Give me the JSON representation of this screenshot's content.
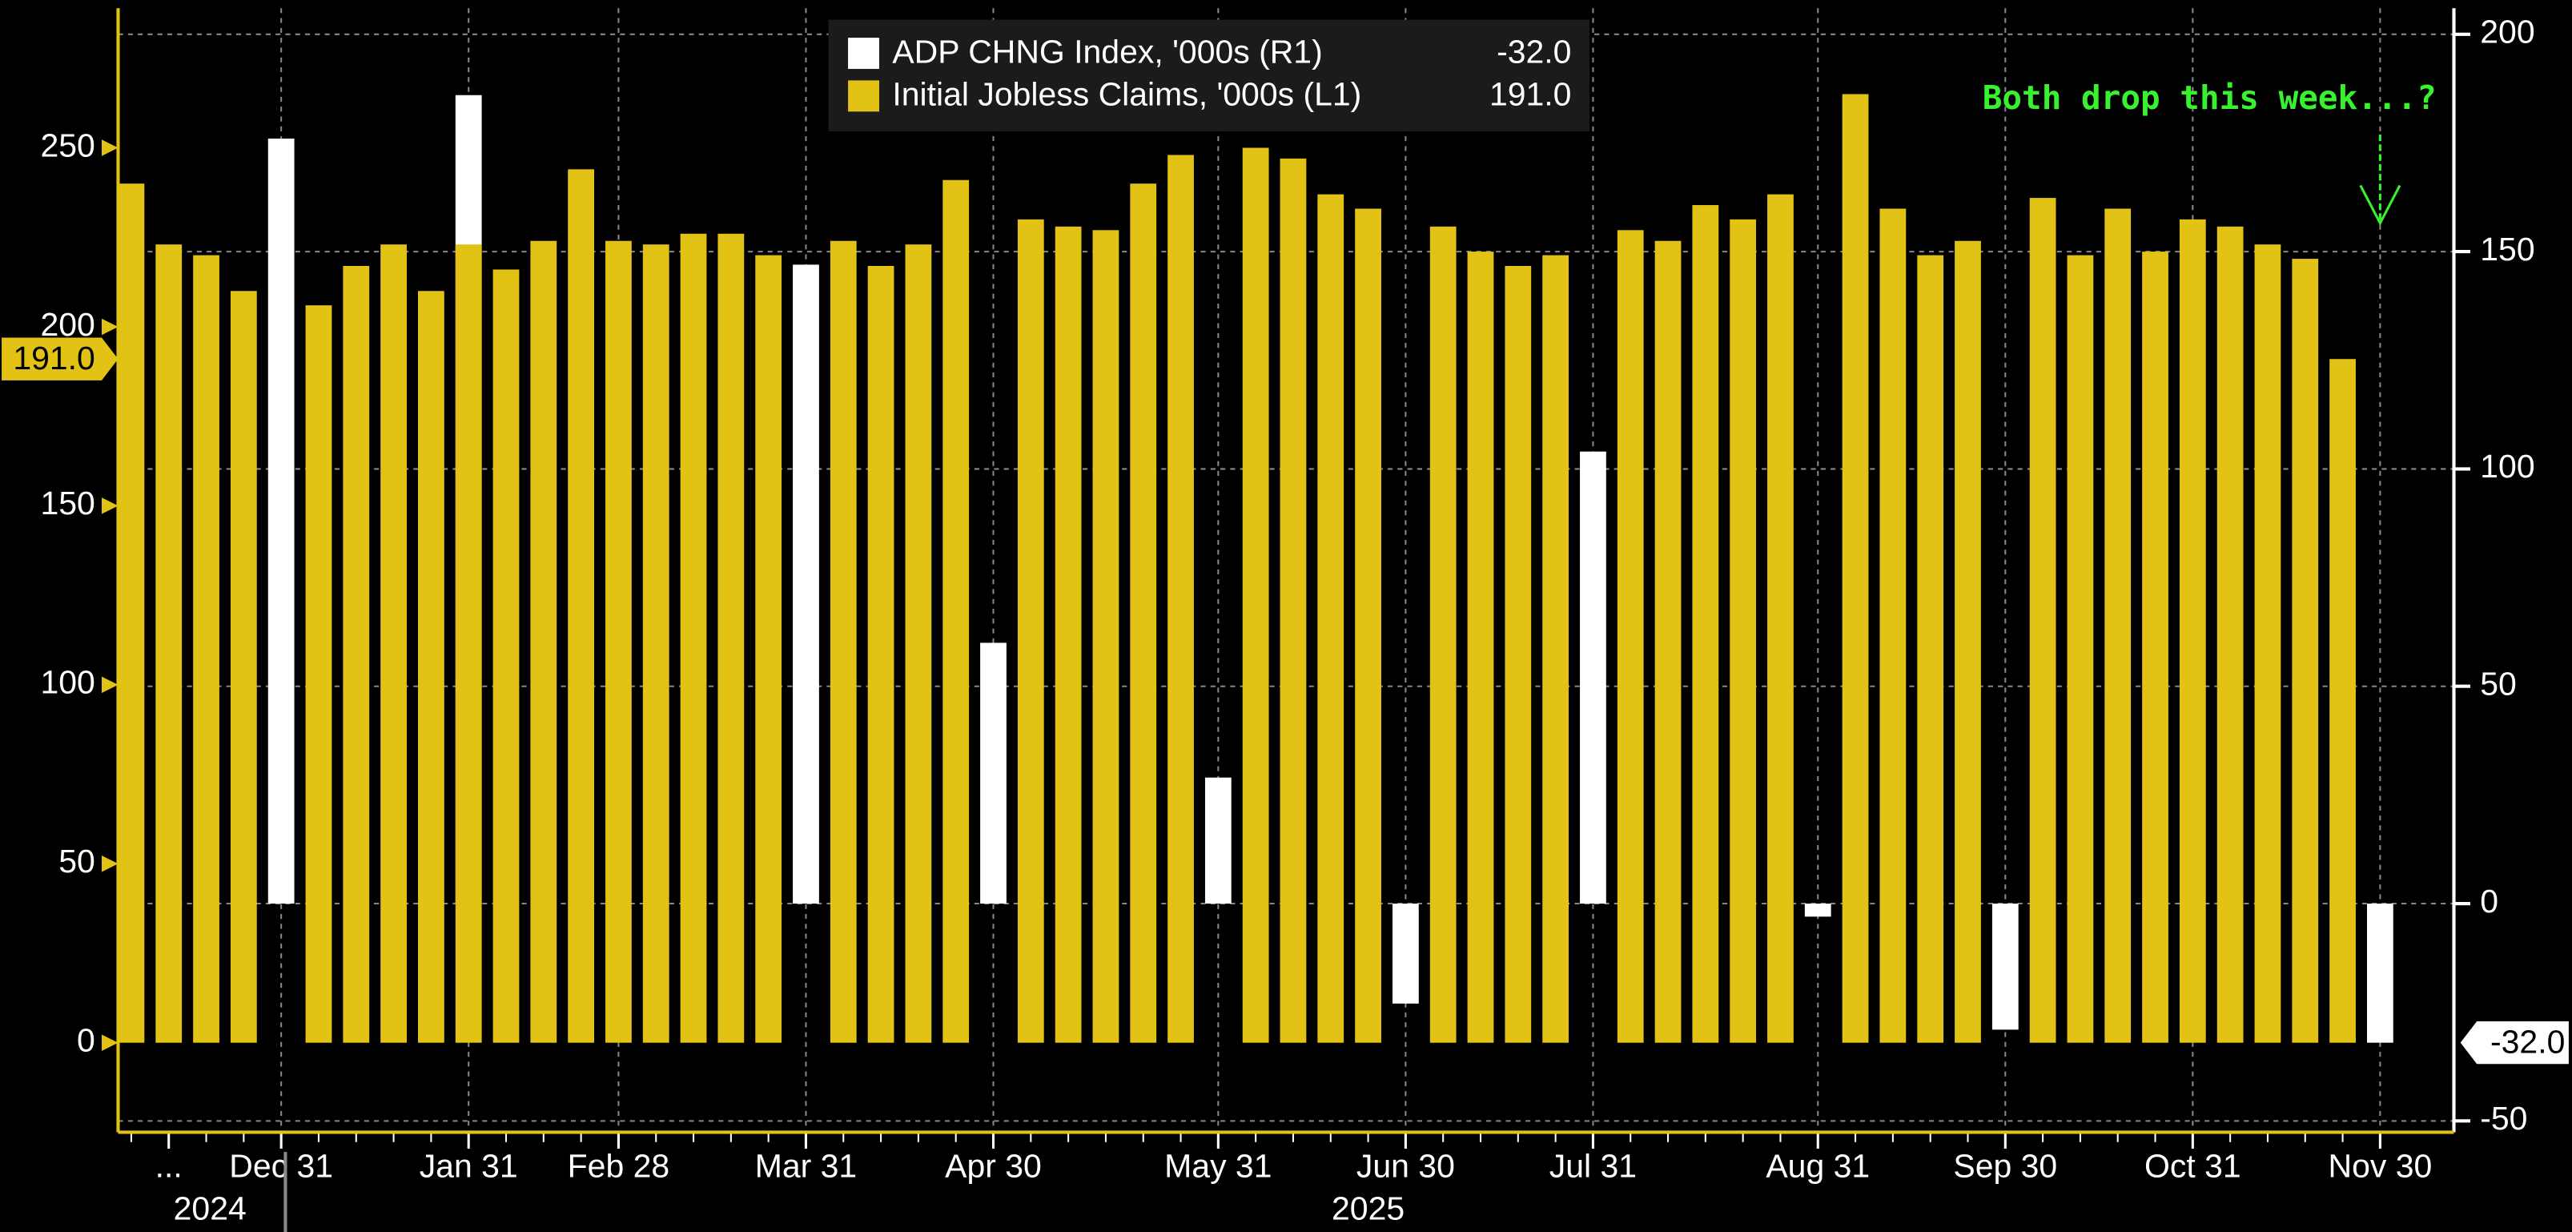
{
  "chart_data": {
    "type": "bar",
    "categories": [
      null,
      "...",
      null,
      null,
      "Dec 31",
      null,
      null,
      null,
      null,
      "Jan 31",
      null,
      null,
      null,
      "Feb 28",
      null,
      null,
      null,
      null,
      "Mar 31",
      null,
      null,
      null,
      null,
      "Apr 30",
      null,
      null,
      null,
      null,
      null,
      "May 31",
      null,
      null,
      null,
      null,
      "Jun 30",
      null,
      null,
      null,
      null,
      "Jul 31",
      null,
      null,
      null,
      null,
      null,
      "Aug 31",
      null,
      null,
      null,
      null,
      "Sep 30",
      null,
      null,
      null,
      null,
      "Oct 31",
      null,
      null,
      null,
      null,
      "Nov 30"
    ],
    "year_labels": [
      "2024",
      "2025"
    ],
    "series": [
      {
        "name": "ADP CHNG Index, '000s (R1)",
        "color": "#ffffff",
        "axis": "y2",
        "last_value_label": "-32.0",
        "values": [
          null,
          null,
          null,
          null,
          176,
          null,
          null,
          null,
          null,
          186,
          null,
          null,
          null,
          null,
          null,
          null,
          null,
          null,
          147,
          null,
          null,
          null,
          null,
          60,
          null,
          null,
          null,
          null,
          null,
          29,
          null,
          null,
          null,
          null,
          -23,
          null,
          null,
          null,
          null,
          104,
          null,
          null,
          null,
          null,
          null,
          -3,
          null,
          null,
          null,
          null,
          -29,
          null,
          null,
          null,
          null,
          null,
          null,
          null,
          null,
          null,
          -32
        ]
      },
      {
        "name": "Initial Jobless Claims, '000s (L1)",
        "color": "#e1c215",
        "axis": "y",
        "last_value_label": "191.0",
        "values": [
          240,
          223,
          220,
          210,
          null,
          206,
          217,
          223,
          210,
          223,
          216,
          224,
          244,
          224,
          223,
          226,
          226,
          220,
          null,
          224,
          217,
          223,
          241,
          null,
          230,
          228,
          227,
          240,
          248,
          null,
          250,
          247,
          237,
          233,
          null,
          228,
          221,
          217,
          220,
          null,
          227,
          224,
          234,
          230,
          237,
          null,
          265,
          233,
          220,
          224,
          null,
          236,
          220,
          233,
          221,
          230,
          228,
          223,
          219,
          191,
          null
        ]
      }
    ],
    "ylim": [
      -25,
      289
    ],
    "yticks": [
      0,
      50,
      100,
      150,
      200,
      250
    ],
    "y2lim": [
      -52.6,
      206
    ],
    "y2ticks": [
      -50,
      0,
      50,
      100,
      150,
      200
    ],
    "grid": true,
    "legend": "top",
    "annotation": "Both drop this week...?"
  }
}
